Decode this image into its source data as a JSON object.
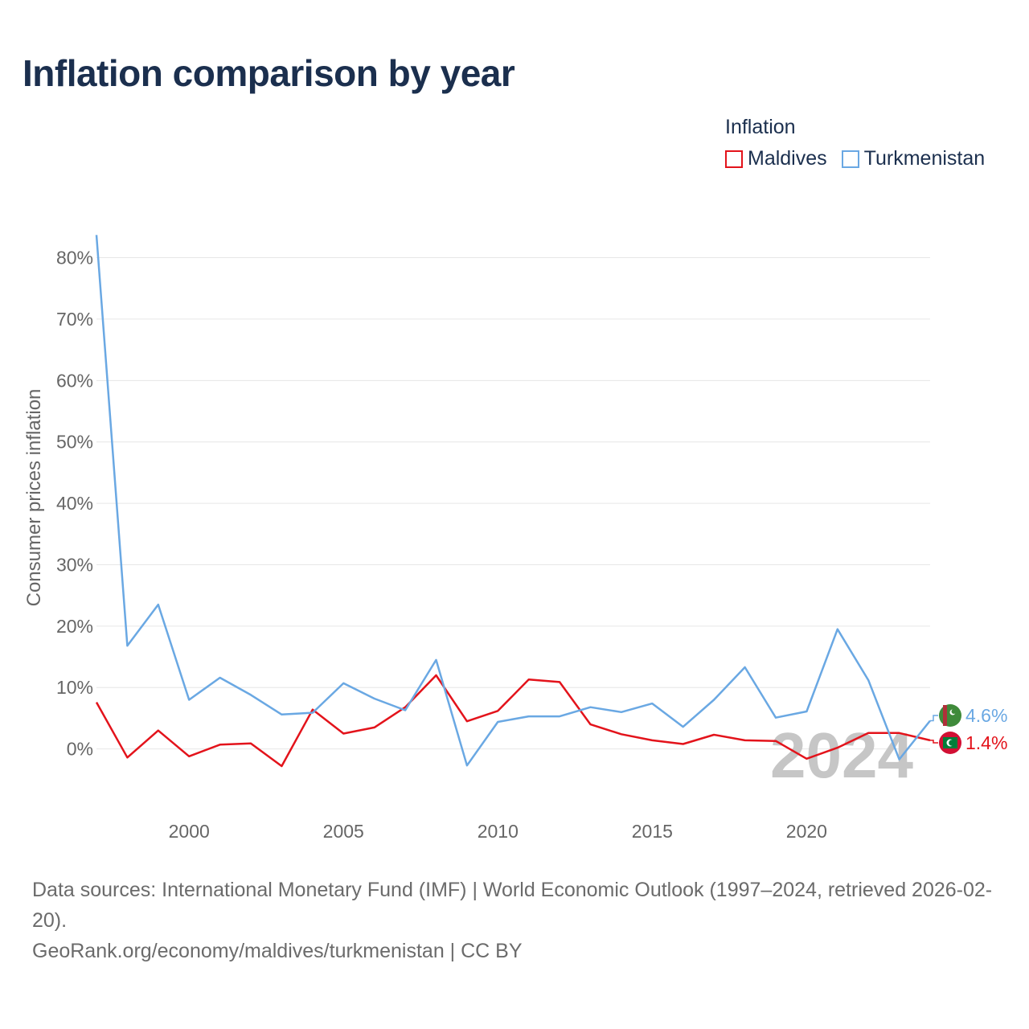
{
  "title": "Inflation comparison by year",
  "legend": {
    "title": "Inflation",
    "items": [
      {
        "label": "Maldives",
        "color": "#e3131b"
      },
      {
        "label": "Turkmenistan",
        "color": "#6aa8e3"
      }
    ]
  },
  "chart_data": {
    "type": "line",
    "title": "Inflation comparison by year",
    "xlabel": "",
    "ylabel": "Consumer prices inflation",
    "ylim": [
      -10,
      84
    ],
    "xlim": [
      1997,
      2024
    ],
    "yticks": [
      0,
      10,
      20,
      30,
      40,
      50,
      60,
      70,
      80
    ],
    "ytick_labels": [
      "0%",
      "10%",
      "20%",
      "30%",
      "40%",
      "50%",
      "60%",
      "70%",
      "80%"
    ],
    "xticks": [
      2000,
      2005,
      2010,
      2015,
      2020
    ],
    "xtick_labels": [
      "2000",
      "2005",
      "2010",
      "2015",
      "2020"
    ],
    "grid": true,
    "watermark_year": "2024",
    "x": [
      1997,
      1998,
      1999,
      2000,
      2001,
      2002,
      2003,
      2004,
      2005,
      2006,
      2007,
      2008,
      2009,
      2010,
      2011,
      2012,
      2013,
      2014,
      2015,
      2016,
      2017,
      2018,
      2019,
      2020,
      2021,
      2022,
      2023,
      2024
    ],
    "series": [
      {
        "name": "Maldives",
        "color": "#e3131b",
        "end_label": "1.4%",
        "values": [
          7.6,
          -1.4,
          3.0,
          -1.2,
          0.7,
          0.9,
          -2.8,
          6.4,
          2.5,
          3.5,
          6.8,
          12.0,
          4.5,
          6.2,
          11.3,
          10.9,
          4.0,
          2.4,
          1.4,
          0.8,
          2.3,
          1.4,
          1.3,
          -1.6,
          0.2,
          2.6,
          2.6,
          1.4
        ]
      },
      {
        "name": "Turkmenistan",
        "color": "#6aa8e3",
        "end_label": "4.6%",
        "values": [
          83.7,
          16.8,
          23.5,
          8.0,
          11.6,
          8.8,
          5.6,
          5.9,
          10.7,
          8.2,
          6.3,
          14.5,
          -2.7,
          4.4,
          5.3,
          5.3,
          6.8,
          6.0,
          7.4,
          3.6,
          8.0,
          13.3,
          5.1,
          6.1,
          19.5,
          11.2,
          -1.7,
          4.6
        ]
      }
    ]
  },
  "footer": {
    "sources": "Data sources: International Monetary Fund (IMF) | World Economic Outlook (1997–2024, retrieved 2026-02-20).",
    "credit": "GeoRank.org/economy/maldives/turkmenistan | CC BY"
  }
}
